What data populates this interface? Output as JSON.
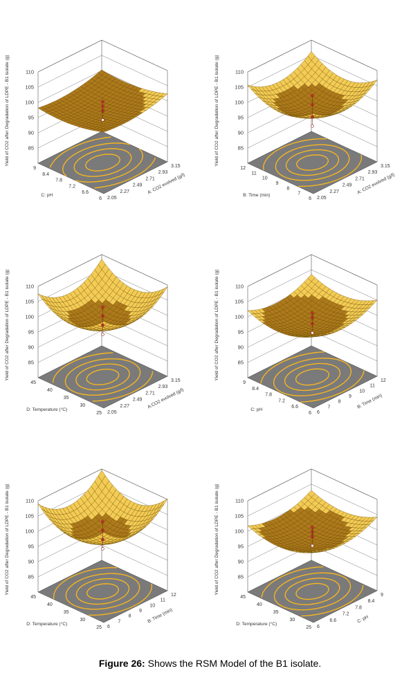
{
  "caption": {
    "label": "Figure 26:",
    "text": " Shows the RSM Model of the B1 isolate."
  },
  "colors": {
    "surface_top": "#f2c94c",
    "surface_dark": "#a9730f",
    "mesh": "#6b4a06",
    "floor": "#7a7a7a",
    "contour": "#f5b521",
    "frame": "#555555",
    "point_red": "#c0392b"
  },
  "chart_data": [
    {
      "type": "surface3d",
      "zlabel": "Yield of CO2 after Degradation of LDPE - B1 isolate  (g)",
      "z_ticks": [
        "110",
        "105",
        "100",
        "95",
        "90",
        "85"
      ],
      "xlabel": "A: CO2 evolved (g/l)",
      "x_ticks": [
        "2.05",
        "2.27",
        "2.49",
        "2.71",
        "2.93",
        "3.15"
      ],
      "ylabel": "C: pH",
      "y_ticks": [
        "6",
        "6.6",
        "7.2",
        "7.8",
        "8.4",
        "9"
      ],
      "curvature": 0.25,
      "tilt": 0.35,
      "design_points": [
        100,
        98.5,
        97
      ]
    },
    {
      "type": "surface3d",
      "zlabel": "Yield of CO2 after Degradation of LDPE - B1 isolate  (g)",
      "z_ticks": [
        "110",
        "105",
        "100",
        "95",
        "90",
        "85"
      ],
      "xlabel": "A: CO2 evolved (g/l)",
      "x_ticks": [
        "2.05",
        "2.27",
        "2.49",
        "2.71",
        "2.93",
        "3.15"
      ],
      "ylabel": "B: Time (min)",
      "y_ticks": [
        "6",
        "7",
        "8",
        "9",
        "10",
        "11",
        "12"
      ],
      "curvature": 0.8,
      "tilt": 0.1,
      "design_points": [
        102,
        99,
        95
      ]
    },
    {
      "type": "surface3d",
      "zlabel": "Yield of CO2 after Degradation of LDPE - B1 isolate  (g)",
      "z_ticks": [
        "110",
        "105",
        "100",
        "95",
        "90",
        "85"
      ],
      "xlabel": "A:CO2 evolved (g/l)",
      "x_ticks": [
        "2.05",
        "2.27",
        "2.49",
        "2.71",
        "2.93",
        "3.15"
      ],
      "ylabel": "D: Temperature (°C)",
      "y_ticks": [
        "25",
        "30",
        "35",
        "40",
        "45"
      ],
      "curvature": 1.0,
      "tilt": 0.15,
      "design_points": [
        103,
        100,
        97
      ]
    },
    {
      "type": "surface3d",
      "zlabel": "Yield of CO2 after Degradation of LDPE - B1 isolate  (g)",
      "z_ticks": [
        "110",
        "105",
        "100",
        "95",
        "90",
        "85"
      ],
      "xlabel": "B: Time (min)",
      "x_ticks": [
        "6",
        "7",
        "8",
        "9",
        "10",
        "11",
        "12"
      ],
      "ylabel": "C: pH",
      "y_ticks": [
        "6",
        "6.6",
        "7.2",
        "7.8",
        "8.4",
        "9"
      ],
      "curvature": 0.55,
      "tilt": 0.25,
      "design_points": [
        101,
        99.5,
        97.5
      ]
    },
    {
      "type": "surface3d",
      "zlabel": "Yield of CO2 after Degradation of LDPE - B1 isolate  (g)",
      "z_ticks": [
        "110",
        "105",
        "100",
        "95",
        "90",
        "85"
      ],
      "xlabel": "B: Time (min)",
      "x_ticks": [
        "6",
        "7",
        "8",
        "9",
        "10",
        "11",
        "12"
      ],
      "ylabel": "D: Temperature (°C)",
      "y_ticks": [
        "25",
        "30",
        "35",
        "40",
        "45"
      ],
      "curvature": 1.1,
      "tilt": 0.1,
      "design_points": [
        103,
        100,
        97
      ]
    },
    {
      "type": "surface3d",
      "zlabel": "Yield of CO2 after Degradation of LDPE - B1 isolate  (g)",
      "z_ticks": [
        "110",
        "105",
        "100",
        "95",
        "90",
        "85"
      ],
      "xlabel": "C: pH",
      "x_ticks": [
        "6",
        "6.6",
        "7.2",
        "7.8",
        "8.4",
        "9"
      ],
      "ylabel": "D: Temperature (°C)",
      "y_ticks": [
        "25",
        "30",
        "35",
        "40",
        "45"
      ],
      "curvature": 0.5,
      "tilt": 0.2,
      "design_points": [
        101,
        99.5,
        98
      ]
    }
  ]
}
